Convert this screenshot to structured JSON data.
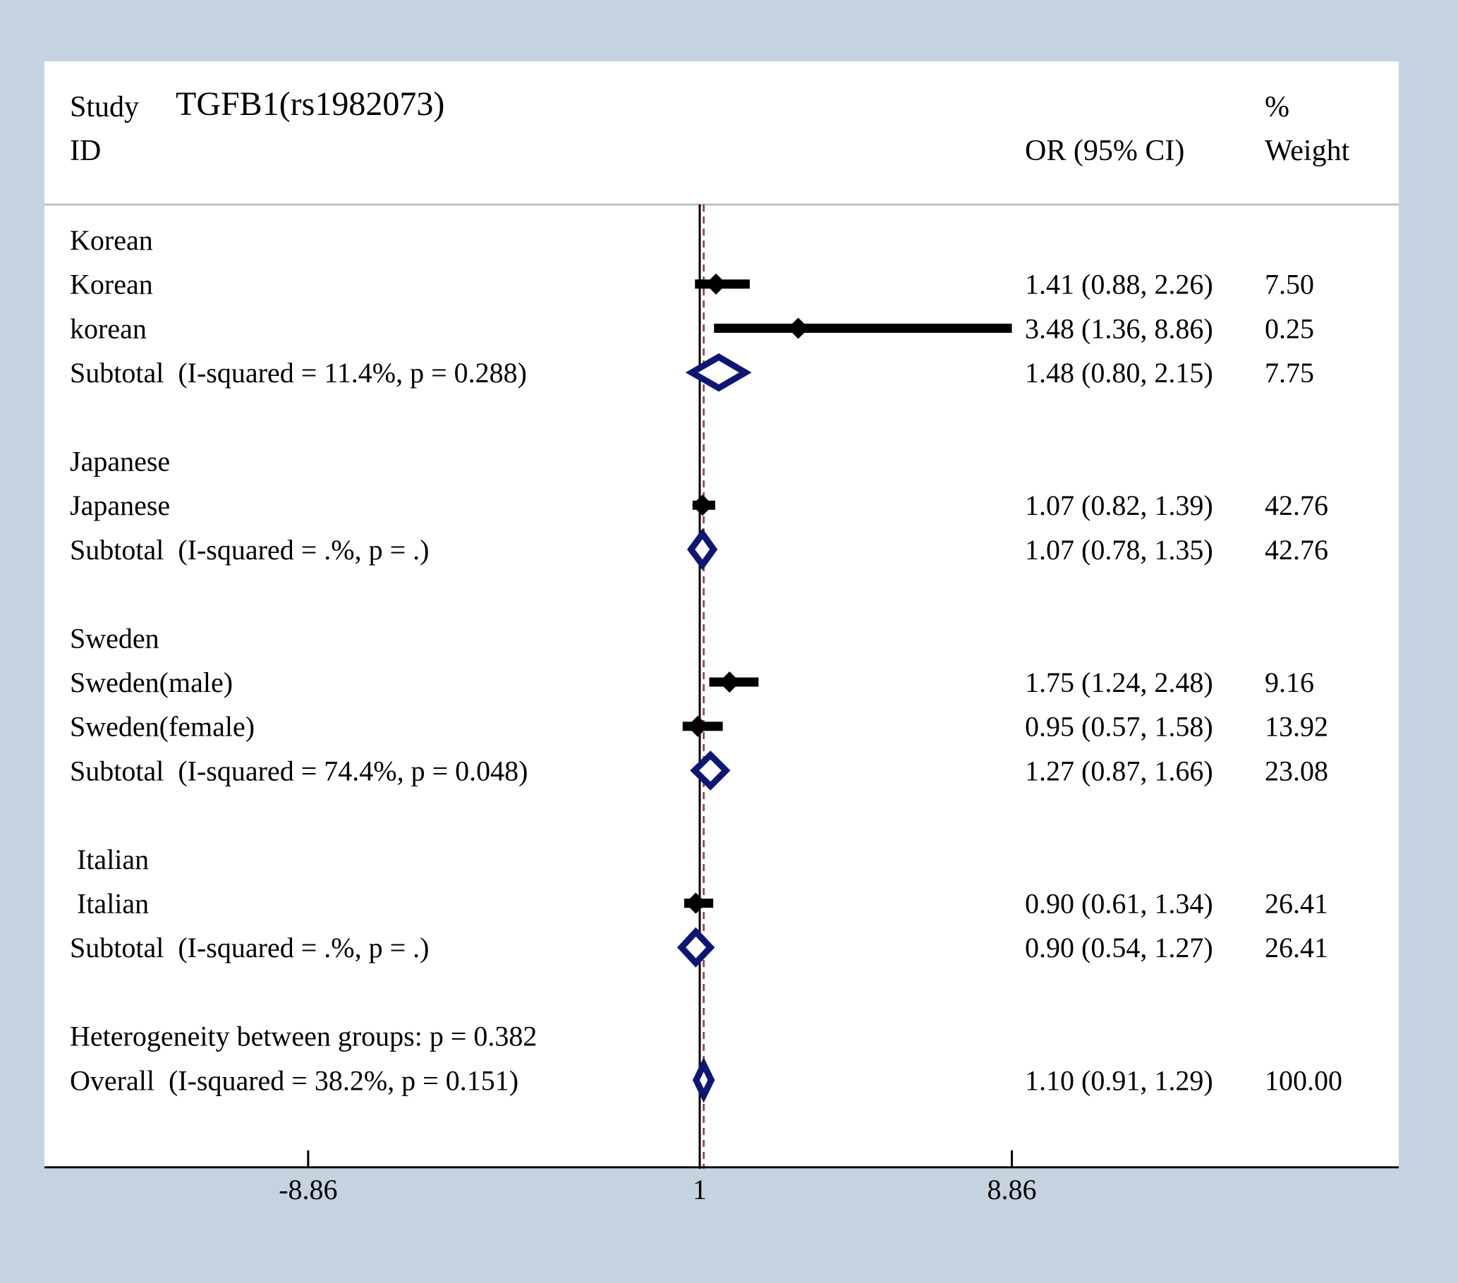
{
  "chart_data": {
    "type": "forest",
    "title": "TGFB1(rs1982073)",
    "header": {
      "study": "Study",
      "id": "ID",
      "or_ci": "OR (95% CI)",
      "pct": "%",
      "weight": "Weight"
    },
    "xaxis": {
      "ticks": [
        {
          "value": -8.86,
          "label": "-8.86"
        },
        {
          "value": 1,
          "label": "1"
        },
        {
          "value": 8.86,
          "label": "8.86"
        }
      ],
      "range": [
        -8.86,
        8.86
      ],
      "null_line": 1,
      "overall_line": 1.1
    },
    "rows": [
      {
        "kind": "group",
        "label": "Korean"
      },
      {
        "kind": "study",
        "label": "Korean",
        "or": 1.41,
        "lo": 0.88,
        "hi": 2.26,
        "ci_text": "1.41 (0.88, 2.26)",
        "weight": "7.50"
      },
      {
        "kind": "study",
        "label": "korean",
        "or": 3.48,
        "lo": 1.36,
        "hi": 8.86,
        "ci_text": "3.48 (1.36, 8.86)",
        "weight": "0.25"
      },
      {
        "kind": "subtotal",
        "label": "Subtotal  (I-squared = 11.4%, p = 0.288)",
        "or": 1.48,
        "lo": 0.8,
        "hi": 2.15,
        "ci_text": "1.48 (0.80, 2.15)",
        "weight": "7.75"
      },
      {
        "kind": "blank"
      },
      {
        "kind": "group",
        "label": "Japanese"
      },
      {
        "kind": "study",
        "label": "Japanese",
        "or": 1.07,
        "lo": 0.82,
        "hi": 1.39,
        "ci_text": "1.07 (0.82, 1.39)",
        "weight": "42.76"
      },
      {
        "kind": "subtotal",
        "label": "Subtotal  (I-squared = .%, p = .)",
        "or": 1.07,
        "lo": 0.78,
        "hi": 1.35,
        "ci_text": "1.07 (0.78, 1.35)",
        "weight": "42.76"
      },
      {
        "kind": "blank"
      },
      {
        "kind": "group",
        "label": "Sweden"
      },
      {
        "kind": "study",
        "label": "Sweden(male)",
        "or": 1.75,
        "lo": 1.24,
        "hi": 2.48,
        "ci_text": "1.75 (1.24, 2.48)",
        "weight": "9.16"
      },
      {
        "kind": "study",
        "label": "Sweden(female)",
        "or": 0.95,
        "lo": 0.57,
        "hi": 1.58,
        "ci_text": "0.95 (0.57, 1.58)",
        "weight": "13.92"
      },
      {
        "kind": "subtotal",
        "label": "Subtotal  (I-squared = 74.4%, p = 0.048)",
        "or": 1.27,
        "lo": 0.87,
        "hi": 1.66,
        "ci_text": "1.27 (0.87, 1.66)",
        "weight": "23.08"
      },
      {
        "kind": "blank"
      },
      {
        "kind": "group",
        "label": " Italian"
      },
      {
        "kind": "study",
        "label": " Italian",
        "or": 0.9,
        "lo": 0.61,
        "hi": 1.34,
        "ci_text": "0.90 (0.61, 1.34)",
        "weight": "26.41"
      },
      {
        "kind": "subtotal",
        "label": "Subtotal  (I-squared = .%, p = .)",
        "or": 0.9,
        "lo": 0.54,
        "hi": 1.27,
        "ci_text": "0.90 (0.54, 1.27)",
        "weight": "26.41"
      },
      {
        "kind": "blank"
      },
      {
        "kind": "note",
        "label": "Heterogeneity between groups: p = 0.382"
      },
      {
        "kind": "overall",
        "label": "Overall  (I-squared = 38.2%, p = 0.151)",
        "or": 1.1,
        "lo": 0.91,
        "hi": 1.29,
        "ci_text": "1.10 (0.91, 1.29)",
        "weight": "100.00"
      }
    ],
    "colors": {
      "background": "#c5d3e0",
      "panel": "#ffffff",
      "point": "#000000",
      "diamond": "#0e1673",
      "overall_line": "#a03030"
    }
  }
}
